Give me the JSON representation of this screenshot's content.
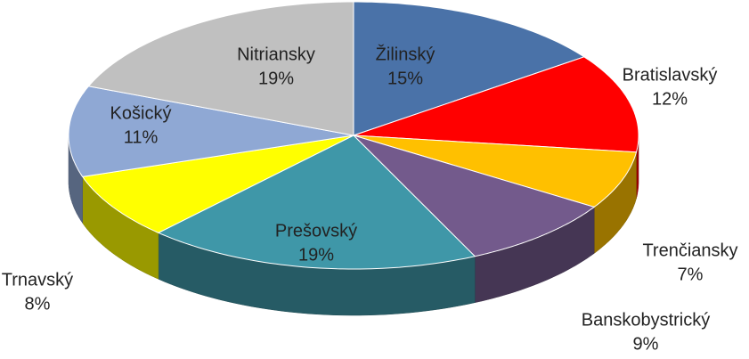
{
  "chart_data": {
    "type": "pie",
    "categories": [
      "Žilinský",
      "Bratislavský",
      "Trenčiansky",
      "Banskobystrický",
      "Prešovský",
      "Trnavský",
      "Košický",
      "Nitriansky"
    ],
    "values": [
      15,
      12,
      7,
      9,
      19,
      8,
      11,
      19
    ],
    "value_labels": [
      "15%",
      "12%",
      "7%",
      "9%",
      "19%",
      "8%",
      "11%",
      "19%"
    ],
    "colors": [
      "#4a72a8",
      "#ff0000",
      "#ffc000",
      "#735a8c",
      "#3f97a8",
      "#ffff00",
      "#8fa8d4",
      "#c0c0c0"
    ]
  }
}
